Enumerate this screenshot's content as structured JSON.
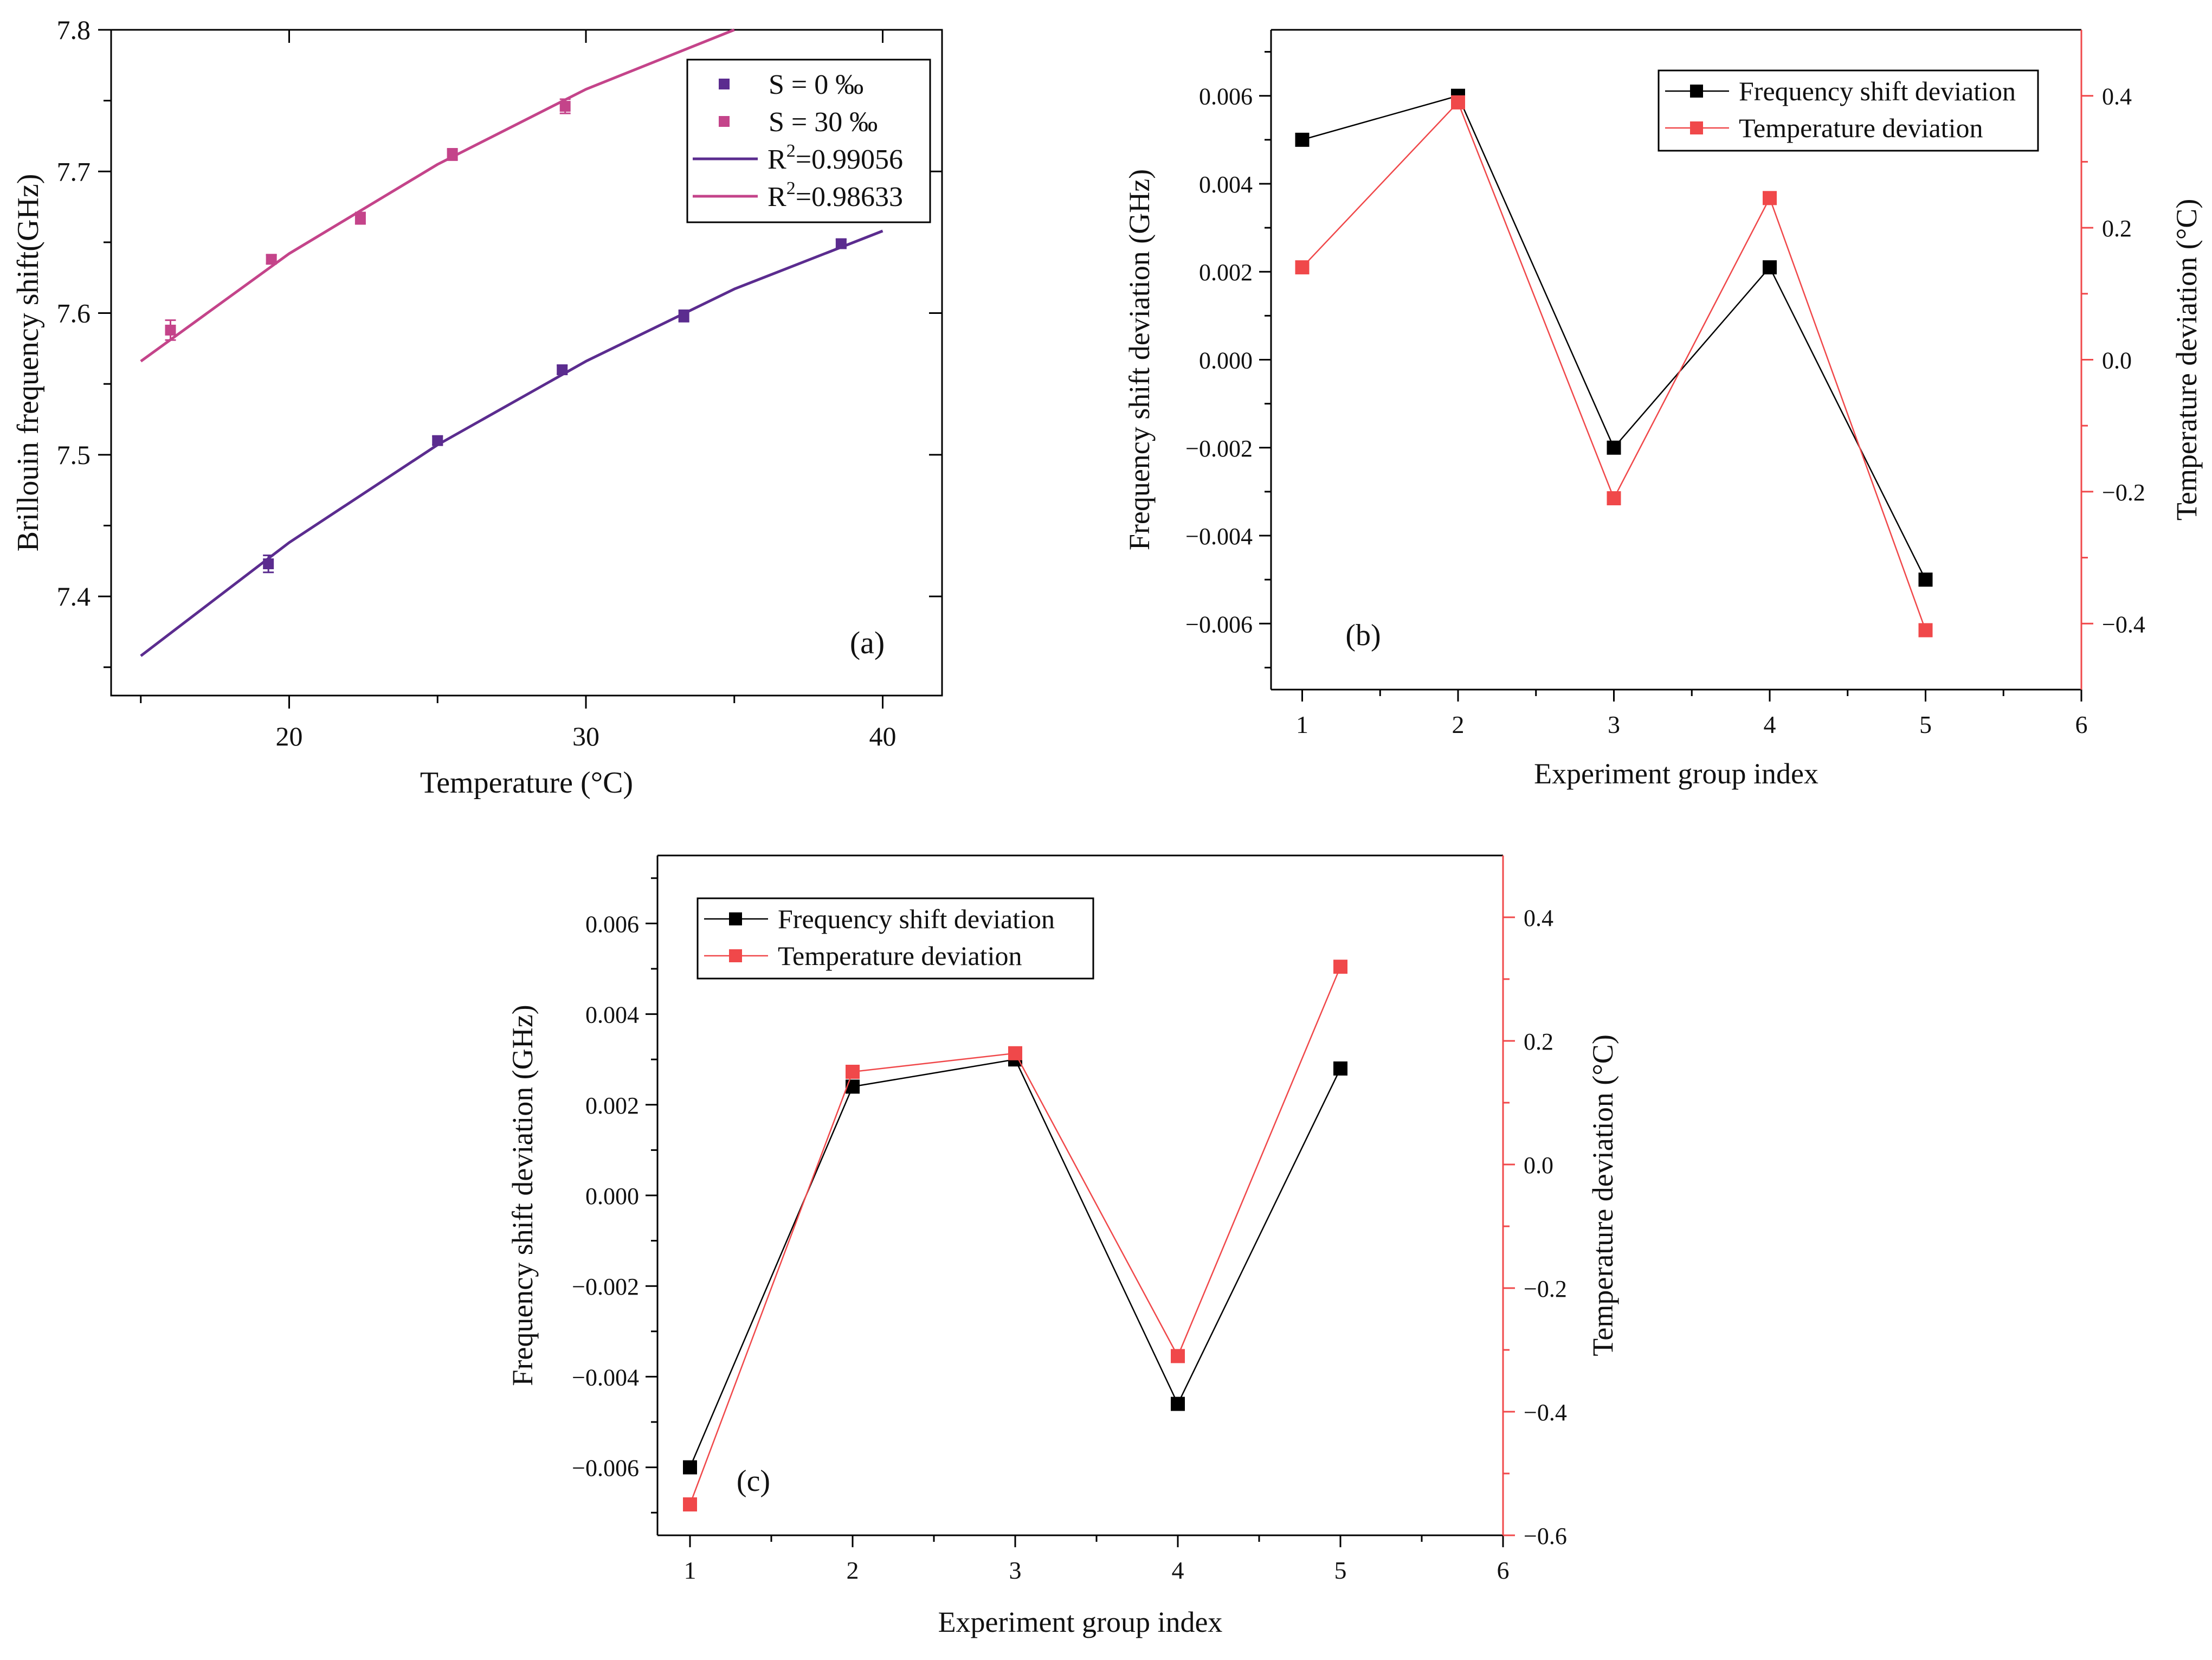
{
  "colors": {
    "black": "#000000",
    "s0": "#5B2C8F",
    "s30": "#C4448A",
    "red": "#F0484A"
  },
  "chart_data": [
    {
      "id": "a",
      "type": "scatter",
      "panel_label": "(a)",
      "xlabel": "Temperature (°C)",
      "ylabel": "Brillouin frequency shift(GHz)",
      "xlim": [
        14,
        42
      ],
      "ylim": [
        7.33,
        7.8
      ],
      "xticks": [
        20,
        30,
        40
      ],
      "yticks": [
        7.4,
        7.5,
        7.6,
        7.7,
        7.8
      ],
      "xtick_labels": [
        "20",
        "30",
        "40"
      ],
      "ytick_labels": [
        "7.4",
        "7.5",
        "7.6",
        "7.7",
        "7.8"
      ],
      "series": [
        {
          "name": "S = 0 ‰",
          "legend_label": "S = 0   ‰",
          "color": "#5B2C8F",
          "x": [
            19.3,
            25.0,
            29.2,
            33.3,
            38.6
          ],
          "y": [
            7.423,
            7.51,
            7.56,
            7.598,
            7.649
          ],
          "err": [
            0.006,
            0.003,
            0.003,
            0.004,
            0.003
          ]
        },
        {
          "name": "S = 30 ‰",
          "legend_label": "S = 30 ‰",
          "color": "#C4448A",
          "x": [
            16.0,
            19.4,
            22.4,
            25.5,
            29.3
          ],
          "y": [
            7.588,
            7.638,
            7.667,
            7.712,
            7.746
          ],
          "err": [
            0.007,
            0.003,
            0.004,
            0.004,
            0.005
          ]
        }
      ],
      "fits": [
        {
          "label_main": "R",
          "label_sup": "2",
          "label_rest": "=0.99056",
          "color": "#5B2C8F",
          "x": [
            15,
            20,
            25,
            30,
            35,
            40
          ],
          "y": [
            7.358,
            7.438,
            7.507,
            7.566,
            7.617,
            7.658
          ]
        },
        {
          "label_main": "R",
          "label_sup": "2",
          "label_rest": "=0.98633",
          "color": "#C4448A",
          "x": [
            15,
            20,
            25,
            30,
            35
          ],
          "y": [
            7.566,
            7.642,
            7.705,
            7.758,
            7.8
          ]
        }
      ]
    },
    {
      "id": "b",
      "type": "line",
      "panel_label": "(b)",
      "xlabel": "Experiment group index",
      "ylabel": "Frequency shift deviation (GHz)",
      "y2label": "Temperature deviation (°C)",
      "xlim": [
        0.8,
        6
      ],
      "ylim": [
        -0.0075,
        0.0075
      ],
      "y2lim": [
        -0.5,
        0.5
      ],
      "xticks": [
        1,
        2,
        3,
        4,
        5,
        6
      ],
      "xtick_labels": [
        "1",
        "2",
        "3",
        "4",
        "5",
        "6"
      ],
      "yticks": [
        -0.006,
        -0.004,
        -0.002,
        0,
        0.002,
        0.004,
        0.006
      ],
      "ytick_labels": [
        "−0.006",
        "−0.004",
        "−0.002",
        "0.000",
        "0.002",
        "0.004",
        "0.006"
      ],
      "y2ticks": [
        -0.4,
        -0.2,
        0,
        0.2,
        0.4
      ],
      "y2tick_labels": [
        "−0.4",
        "−0.2",
        "0.0",
        "0.2",
        "0.4"
      ],
      "x": [
        1,
        2,
        3,
        4,
        5
      ],
      "series": [
        {
          "name": "Frequency shift deviation",
          "axis": "left",
          "color": "#000000",
          "values": [
            0.005,
            0.006,
            -0.002,
            0.0021,
            -0.005
          ]
        },
        {
          "name": "Temperature deviation",
          "axis": "right",
          "color": "#F0484A",
          "values": [
            0.14,
            0.39,
            -0.21,
            0.245,
            -0.41
          ]
        }
      ]
    },
    {
      "id": "c",
      "type": "line",
      "panel_label": "(c)",
      "xlabel": "Experiment group index",
      "ylabel": "Frequency shift deviation (GHz)",
      "y2label": "Temperature deviation (°C)",
      "xlim": [
        0.8,
        6
      ],
      "ylim": [
        -0.0075,
        0.0075
      ],
      "y2lim": [
        -0.6,
        0.5
      ],
      "xticks": [
        1,
        2,
        3,
        4,
        5,
        6
      ],
      "xtick_labels": [
        "1",
        "2",
        "3",
        "4",
        "5",
        "6"
      ],
      "yticks": [
        -0.006,
        -0.004,
        -0.002,
        0,
        0.002,
        0.004,
        0.006
      ],
      "ytick_labels": [
        "−0.006",
        "−0.004",
        "−0.002",
        "0.000",
        "0.002",
        "0.004",
        "0.006"
      ],
      "y2ticks": [
        -0.6,
        -0.4,
        -0.2,
        0,
        0.2,
        0.4
      ],
      "y2tick_labels": [
        "−0.6",
        "−0.4",
        "−0.2",
        "0.0",
        "0.2",
        "0.4"
      ],
      "x": [
        1,
        2,
        3,
        4,
        5
      ],
      "series": [
        {
          "name": "Frequency shift deviation",
          "axis": "left",
          "color": "#000000",
          "values": [
            -0.006,
            0.0024,
            0.003,
            -0.0046,
            0.0028
          ]
        },
        {
          "name": "Temperature deviation",
          "axis": "right",
          "color": "#F0484A",
          "values": [
            -0.55,
            0.15,
            0.18,
            -0.31,
            0.32
          ]
        }
      ]
    }
  ]
}
